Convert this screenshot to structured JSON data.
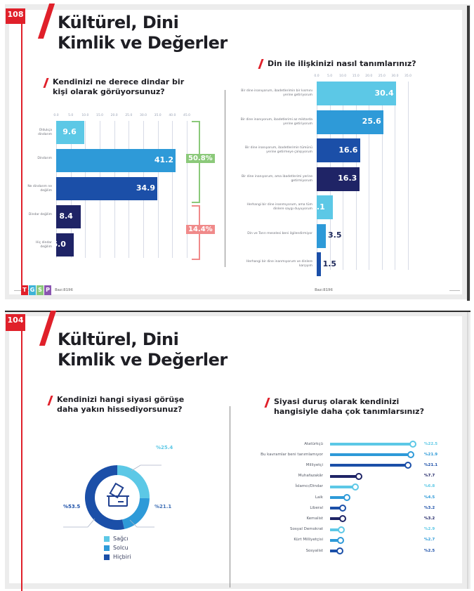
{
  "pages": [
    {
      "page_number": "108",
      "title_line1": "Kültürel, Dini",
      "title_line2": "Kimlik ve Değerler",
      "baz_left": "Baz:8196",
      "baz_right": "Baz:8196",
      "logo_letters": [
        "T",
        "G",
        "S",
        "P"
      ]
    },
    {
      "page_number": "104",
      "title_line1": "Kültürel, Dini",
      "title_line2": "Kimlik ve Değerler"
    }
  ],
  "colors": {
    "accent_red": "#e0202a",
    "light_blue": "#5cc8e6",
    "mid_blue": "#2e9ad8",
    "blue": "#1b4fa8",
    "navy": "#1f2466",
    "green": "#8bc97a",
    "pink": "#f08a8a"
  },
  "chart_data": [
    {
      "type": "bar",
      "orientation": "horizontal",
      "title_line1": "Kendinizi ne derece dindar bir",
      "title_line2": "kişi olarak görüyorsunuz?",
      "categories": [
        "Oldukça dindarım",
        "Dindarım",
        "Ne dindarım ne değilim",
        "Dindar değilim",
        "Hiç dindar değilim"
      ],
      "values": [
        9.6,
        41.2,
        34.9,
        8.4,
        6.0
      ],
      "value_labels": [
        "9.6",
        "41.2",
        "34.9",
        "8.4",
        "6.0"
      ],
      "bar_colors": [
        "#5cc8e6",
        "#2e9ad8",
        "#1b4fa8",
        "#1f2466",
        "#1f2466"
      ],
      "xticks": [
        "0.0",
        "5.0",
        "10.0",
        "15.0",
        "20.0",
        "25.0",
        "30.0",
        "35.0",
        "40.0",
        "45.0"
      ],
      "xlim": [
        0,
        45
      ],
      "grid": true,
      "annotations": [
        {
          "label": "50.8%",
          "groups": [
            "Oldukça dindarım",
            "Dindarım"
          ],
          "color": "#8bc97a"
        },
        {
          "label": "14.4%",
          "groups": [
            "Dindar değilim",
            "Hiç dindar değilim"
          ],
          "color": "#f08a8a"
        }
      ]
    },
    {
      "type": "bar",
      "orientation": "horizontal",
      "title": "Din ile ilişkinizi nasıl tanımlarınız?",
      "categories": [
        "Bir dine inanıyorum, ibadetlerimin bir kısmını yerine getiriyorum",
        "Bir dine inanıyorum, ibadetlerimi az miktarda yerine getiriyorum",
        "Bir dine inanıyorum, ibadetlerimin tümünü yerine getirmeye çalışıyorum",
        "Bir dine inanıyorum, ama ibadetlerimi yerine getirmiyorum",
        "Herhangi bir dine inanmıyorum, ama tüm dinlere saygı duyuyorum",
        "Din ve Tanrı meselesi beni ilgilendirmiyor",
        "Herhangi bir dine inanmıyorum ve dinlere karşıyım"
      ],
      "values": [
        30.4,
        25.6,
        16.6,
        16.3,
        6.1,
        3.5,
        1.5
      ],
      "value_labels": [
        "30.4",
        "25.6",
        "16.6",
        "16.3",
        "6.1",
        "3.5",
        "1.5"
      ],
      "bar_colors": [
        "#5cc8e6",
        "#2e9ad8",
        "#1b4fa8",
        "#1f2466",
        "#5cc8e6",
        "#2e9ad8",
        "#1b4fa8"
      ],
      "xticks": [
        "0.0",
        "5.0",
        "10.0",
        "15.0",
        "20.0",
        "25.0",
        "30.0",
        "35.0"
      ],
      "xlim": [
        0,
        35
      ],
      "grid": true
    },
    {
      "type": "pie",
      "donut": true,
      "title_line1": "Kendinizi hangi siyasi görüşe",
      "title_line2": "daha yakın hissediyorsunuz?",
      "center_icon": "ballot-box-icon",
      "slices": [
        {
          "name": "Sağcı",
          "value": 25.4,
          "label": "%25.4",
          "color": "#5cc8e6"
        },
        {
          "name": "Solcu",
          "value": 21.1,
          "label": "%21.1",
          "color": "#2e9ad8"
        },
        {
          "name": "Hiçbiri",
          "value": 53.5,
          "label": "%53.5",
          "color": "#1b4fa8"
        }
      ],
      "legend": [
        "Sağcı",
        "Solcu",
        "Hiçbiri"
      ],
      "legend_position": "bottom"
    },
    {
      "type": "bar",
      "style": "lollipop",
      "title_line1": "Siyasi duruş olarak kendinizi",
      "title_line2": "hangisiyle daha çok tanımlarsınız?",
      "categories": [
        "Atatürkçü",
        "Bu kavramlar beni tanımlamıyor",
        "Milliyetçi",
        "Muhafazakâr",
        "İslamcı/Dindar",
        "Laik",
        "Liberal",
        "Kemalist",
        "Sosyal Demokrat",
        "Kürt Milliyetçisi",
        "Sosyalist"
      ],
      "values": [
        22.5,
        21.9,
        21.1,
        7.7,
        6.8,
        4.5,
        3.2,
        3.2,
        2.9,
        2.7,
        2.5
      ],
      "value_labels": [
        "%22.5",
        "%21.9",
        "%21.1",
        "%7.7",
        "%6.8",
        "%4.5",
        "%3.2",
        "%3.2",
        "%2.9",
        "%2.7",
        "%2.5"
      ],
      "bar_colors": [
        "#5cc8e6",
        "#2e9ad8",
        "#1b4fa8",
        "#1f2466",
        "#5cc8e6",
        "#2e9ad8",
        "#1b4fa8",
        "#1f2466",
        "#5cc8e6",
        "#2e9ad8",
        "#1b4fa8"
      ],
      "xlim": [
        0,
        23
      ]
    }
  ]
}
